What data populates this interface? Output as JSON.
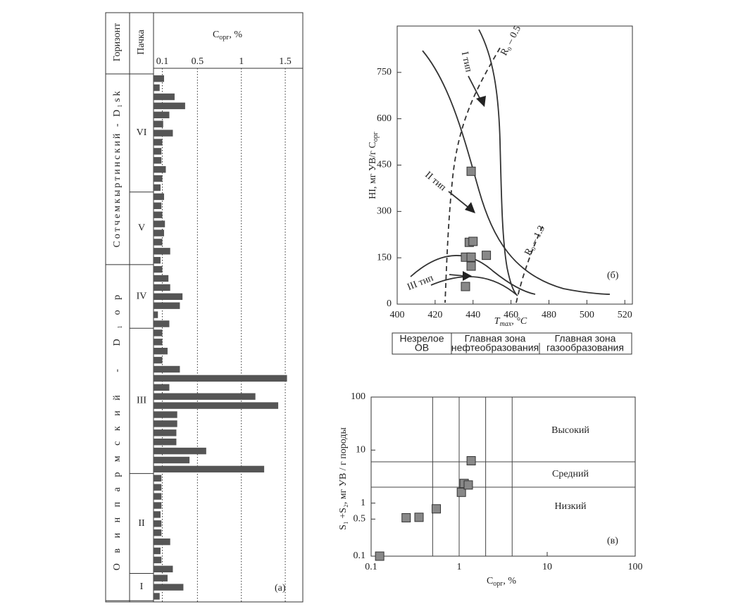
{
  "chart_data": [
    {
      "type": "bar",
      "orientation": "horizontal",
      "column_headers": [
        "Горизонт",
        "Пачка"
      ],
      "x_label": {
        "text": "C",
        "subscript": "орг",
        "suffix": ", %"
      },
      "xlim": [
        0,
        1.7
      ],
      "xticks": [
        0.1,
        0.5,
        1,
        1.5
      ],
      "grid": "dotted",
      "color": "#555555",
      "panel_label": "(а)",
      "horizons": [
        {
          "name": "Сотчемкыртинский - D₁sk",
          "units": [
            {
              "name": "VI",
              "values": [
                0.12,
                0.07,
                0.24,
                0.36,
                0.18,
                0.11,
                0.22,
                0.1,
                0.09,
                0.09,
                0.14,
                0.1,
                0.08
              ]
            },
            {
              "name": "V",
              "values": [
                0.12,
                0.09,
                0.1,
                0.13,
                0.12,
                0.1,
                0.19,
                0.08
              ]
            }
          ]
        },
        {
          "name": "Овинпармский - D₁op",
          "units": [
            {
              "name": "IV",
              "values": [
                0.1,
                0.17,
                0.19,
                0.33,
                0.3,
                0.05,
                0.18
              ]
            },
            {
              "name": "III",
              "values": [
                0.1,
                0.1,
                0.16,
                0.1,
                0.3,
                1.52,
                0.18,
                1.16,
                1.42,
                0.27,
                0.27,
                0.26,
                0.26,
                0.6,
                0.41,
                1.26
              ]
            },
            {
              "name": "II",
              "values": [
                0.09,
                0.09,
                0.09,
                0.09,
                0.08,
                0.09,
                0.09,
                0.19,
                0.08,
                0.09,
                0.22
              ]
            },
            {
              "name": "I",
              "values": [
                0.16,
                0.34,
                0.07
              ]
            }
          ]
        }
      ]
    },
    {
      "type": "scatter",
      "x_label": {
        "text": "T",
        "subscript": "max",
        "suffix": ", °C"
      },
      "y_label": {
        "text": "HI, мг УВ/г C",
        "subscript": "орг"
      },
      "xlim": [
        400,
        524
      ],
      "ylim": [
        0,
        900
      ],
      "xticks": [
        400,
        420,
        440,
        460,
        480,
        500,
        520
      ],
      "yticks": [
        0,
        150,
        300,
        450,
        600,
        750
      ],
      "x": [
        439,
        438,
        440,
        447,
        436,
        439,
        439,
        436
      ],
      "values": [
        430,
        200,
        203,
        158,
        152,
        152,
        123,
        57
      ],
      "color": "#888888",
      "annotations": [
        "I тип",
        "II тип",
        "III тип",
        "R₀ – 0.5",
        "R₀ – 1.3"
      ],
      "panel_label": "(б)",
      "zones": [
        [
          "Незрелое",
          "ОВ"
        ],
        [
          "Главная зона",
          "нефтеобразования"
        ],
        [
          "Главная зона",
          "газообразования"
        ]
      ]
    },
    {
      "type": "scatter",
      "log_x": true,
      "log_y": true,
      "x_label": {
        "text": "C",
        "subscript": "орг",
        "suffix": ", %"
      },
      "y_label": {
        "text": "S₁ +S₂, мг УВ / г породы"
      },
      "xlim": [
        0.1,
        100
      ],
      "ylim": [
        0.1,
        100
      ],
      "xticks": [
        0.1,
        1,
        10,
        100
      ],
      "yticks": [
        0.1,
        0.5,
        1,
        10,
        100
      ],
      "grid_x": [
        0.5,
        1,
        2,
        4
      ],
      "grid_y": [
        2,
        6
      ],
      "x": [
        0.125,
        0.25,
        0.35,
        0.55,
        1.06,
        1.14,
        1.27,
        1.37
      ],
      "values": [
        0.1,
        0.53,
        0.54,
        0.78,
        1.6,
        2.35,
        2.2,
        6.3
      ],
      "color": "#888888",
      "zone_labels": [
        "Высокий",
        "Средний",
        "Низкий"
      ],
      "panel_label": "(в)"
    }
  ]
}
